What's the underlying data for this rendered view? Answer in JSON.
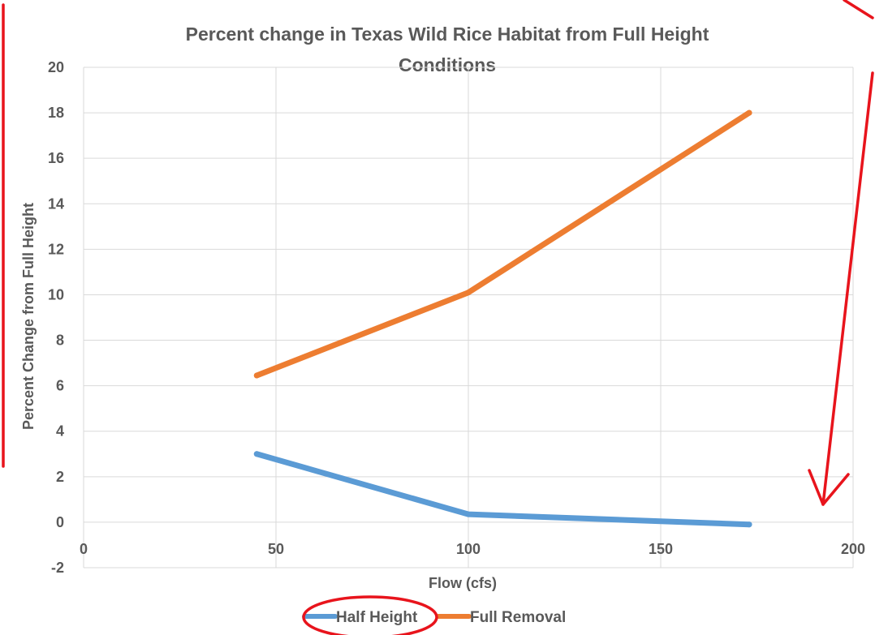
{
  "chart_data": {
    "type": "line",
    "title": "Percent change in Texas Wild Rice Habitat from Full Height Conditions",
    "title_lines": [
      "Percent change in Texas Wild Rice Habitat from Full Height",
      "Conditions"
    ],
    "xlabel": "Flow (cfs)",
    "ylabel": "Percent Change from Full Height",
    "xlim": [
      0,
      200
    ],
    "ylim": [
      -2,
      20
    ],
    "x_ticks": [
      0,
      50,
      100,
      150,
      200
    ],
    "y_ticks": [
      -2,
      0,
      2,
      4,
      6,
      8,
      10,
      12,
      14,
      16,
      18,
      20
    ],
    "grid": true,
    "legend_position": "bottom",
    "series": [
      {
        "name": "Half Height",
        "color": "#5b9bd5",
        "x": [
          45,
          100,
          173
        ],
        "y": [
          3.0,
          0.35,
          -0.1
        ]
      },
      {
        "name": "Full Removal",
        "color": "#ed7d31",
        "x": [
          45,
          100,
          173
        ],
        "y": [
          6.45,
          10.1,
          18.0
        ]
      }
    ]
  },
  "annotation_color": "#e8141c"
}
